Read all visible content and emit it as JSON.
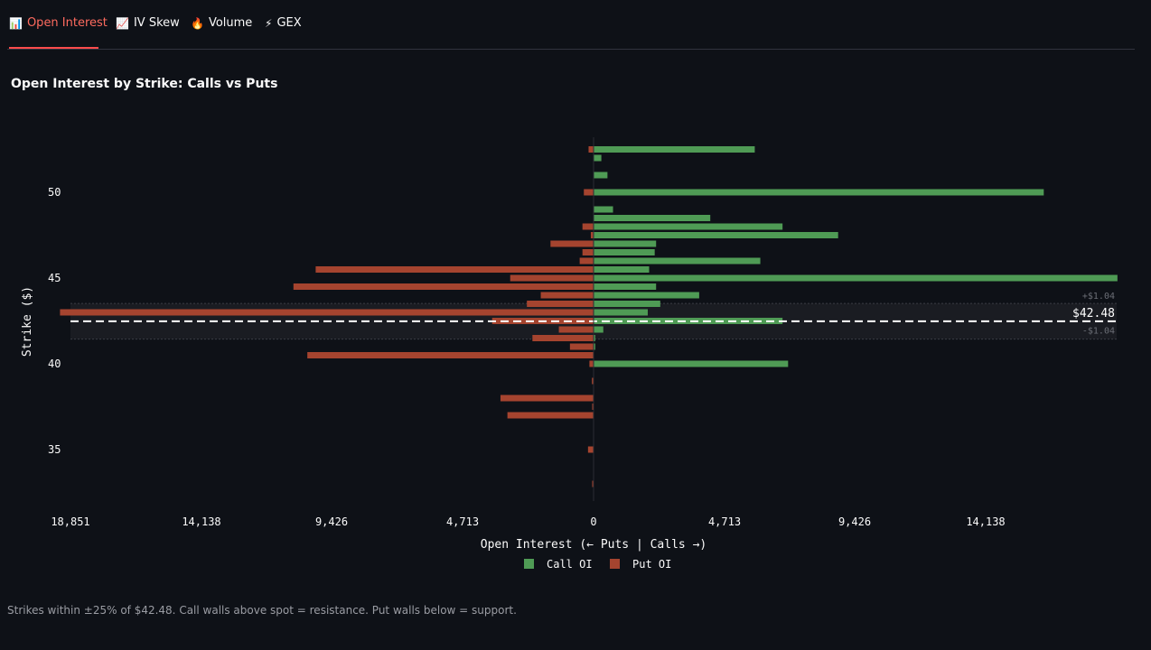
{
  "tabs": [
    {
      "label": "Open Interest",
      "icon": "bar-chart-icon",
      "glyph": "📊",
      "active": true
    },
    {
      "label": "IV Skew",
      "icon": "line-chart-icon",
      "glyph": "📈",
      "active": false
    },
    {
      "label": "Volume",
      "icon": "fire-icon",
      "glyph": "🔥",
      "active": false
    },
    {
      "label": "GEX",
      "icon": "lightning-icon",
      "glyph": "⚡",
      "active": false
    }
  ],
  "title": "Open Interest by Strike: Calls vs Puts",
  "caption": "Strikes within ±25% of $42.48. Call walls above spot = resistance. Put walls below = support.",
  "chart_data": {
    "type": "bar",
    "orientation": "horizontal",
    "title": "Open Interest by Strike: Calls vs Puts",
    "xlabel": "Open Interest  (← Puts | Calls →)",
    "ylabel": "Strike ($)",
    "x_ticks": [
      "18,851",
      "14,138",
      "9,426",
      "4,713",
      "0",
      "4,713",
      "9,426",
      "14,138"
    ],
    "y_ticks": [
      "50",
      "45",
      "40",
      "35"
    ],
    "xlim": [
      -18851,
      18851
    ],
    "ylim": [
      32.5,
      53.7
    ],
    "spot": 42.48,
    "spot_label": "$42.48",
    "band_upper_label": "+$1.04",
    "band_lower_label": "-$1.04",
    "band": [
      41.44,
      43.52
    ],
    "colors": {
      "calls": "#4f9b55",
      "puts": "#a5442f",
      "spot_line": "#ffffff",
      "background": "#0e1117"
    },
    "legend": {
      "placement": "bottom-center",
      "entries": [
        "Call OI",
        "Put OI"
      ]
    },
    "series": [
      {
        "name": "Call OI",
        "strikes": [
          52.5,
          52,
          51,
          50,
          49,
          48.5,
          48,
          47.5,
          47,
          46.5,
          46,
          45.5,
          45,
          44.5,
          44,
          43.5,
          43,
          42.5,
          42,
          41.5,
          41,
          40
        ],
        "values": [
          5800,
          280,
          500,
          16200,
          700,
          4200,
          6800,
          8800,
          2250,
          2200,
          6000,
          2000,
          18851,
          2250,
          3800,
          2400,
          1950,
          6800,
          350,
          60,
          60,
          7000
        ]
      },
      {
        "name": "Put OI",
        "strikes": [
          52.5,
          50,
          48,
          47.5,
          47,
          46.5,
          46,
          45.5,
          45,
          44.5,
          44,
          43.5,
          43,
          42.5,
          42,
          41.5,
          41,
          40.5,
          40,
          39,
          38,
          37.5,
          37,
          35,
          33
        ],
        "values": [
          180,
          350,
          400,
          100,
          1550,
          400,
          500,
          10000,
          3000,
          10800,
          1900,
          2400,
          19200,
          3650,
          1250,
          2200,
          850,
          10300,
          150,
          60,
          3350,
          20,
          3100,
          200,
          40
        ]
      }
    ]
  }
}
